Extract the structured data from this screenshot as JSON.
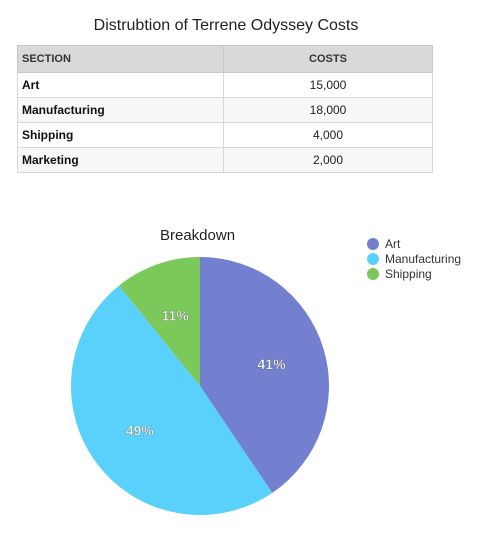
{
  "document": {
    "title": "Distrubtion of Terrene Odyssey Costs"
  },
  "table": {
    "headers": [
      "SECTION",
      "COSTS"
    ],
    "rows": [
      {
        "section": "Art",
        "cost": "15,000"
      },
      {
        "section": "Manufacturing",
        "cost": "18,000"
      },
      {
        "section": "Shipping",
        "cost": "4,000"
      },
      {
        "section": "Marketing",
        "cost": "2,000"
      }
    ]
  },
  "chart_data": {
    "type": "pie",
    "title": "Breakdown",
    "categories": [
      "Art",
      "Manufacturing",
      "Shipping"
    ],
    "values": [
      15000,
      18000,
      4000
    ],
    "labels": [
      "41%",
      "49%",
      "11%"
    ],
    "colors": [
      "#7280cf",
      "#5ad1fb",
      "#7bc95a"
    ],
    "legend": "top-right"
  }
}
